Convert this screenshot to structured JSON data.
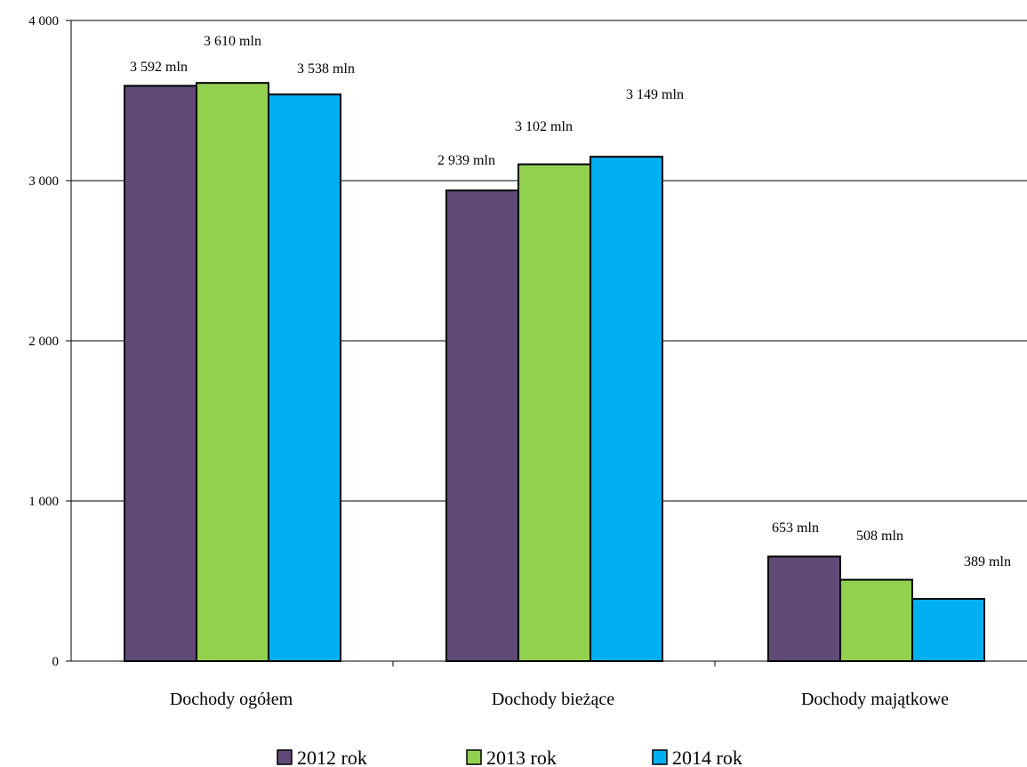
{
  "chart_data": {
    "type": "bar",
    "categories": [
      "Dochody ogółem",
      "Dochody bieżące",
      "Dochody majątkowe"
    ],
    "series": [
      {
        "name": "2012 rok",
        "color": "#614a78",
        "values": [
          3592,
          2939,
          653
        ],
        "labels": [
          "3 592 mln",
          "2 939 mln",
          "653 mln"
        ]
      },
      {
        "name": "2013 rok",
        "color": "#92d050",
        "values": [
          3610,
          3102,
          508
        ],
        "labels": [
          "3 610 mln",
          "3 102 mln",
          "508 mln"
        ]
      },
      {
        "name": "2014 rok",
        "color": "#00b0f0",
        "values": [
          3538,
          3149,
          389
        ],
        "labels": [
          "3 538 mln",
          "3 149 mln",
          "389 mln"
        ]
      }
    ],
    "yticks": [
      {
        "value": 0,
        "label": "0"
      },
      {
        "value": 1000,
        "label": "1 000"
      },
      {
        "value": 2000,
        "label": "2 000"
      },
      {
        "value": 3000,
        "label": "3 000"
      },
      {
        "value": 4000,
        "label": "4 000"
      }
    ],
    "ylim": [
      0,
      4000
    ],
    "grid": true,
    "legend_position": "bottom",
    "title": "",
    "xlabel": "",
    "ylabel": ""
  }
}
